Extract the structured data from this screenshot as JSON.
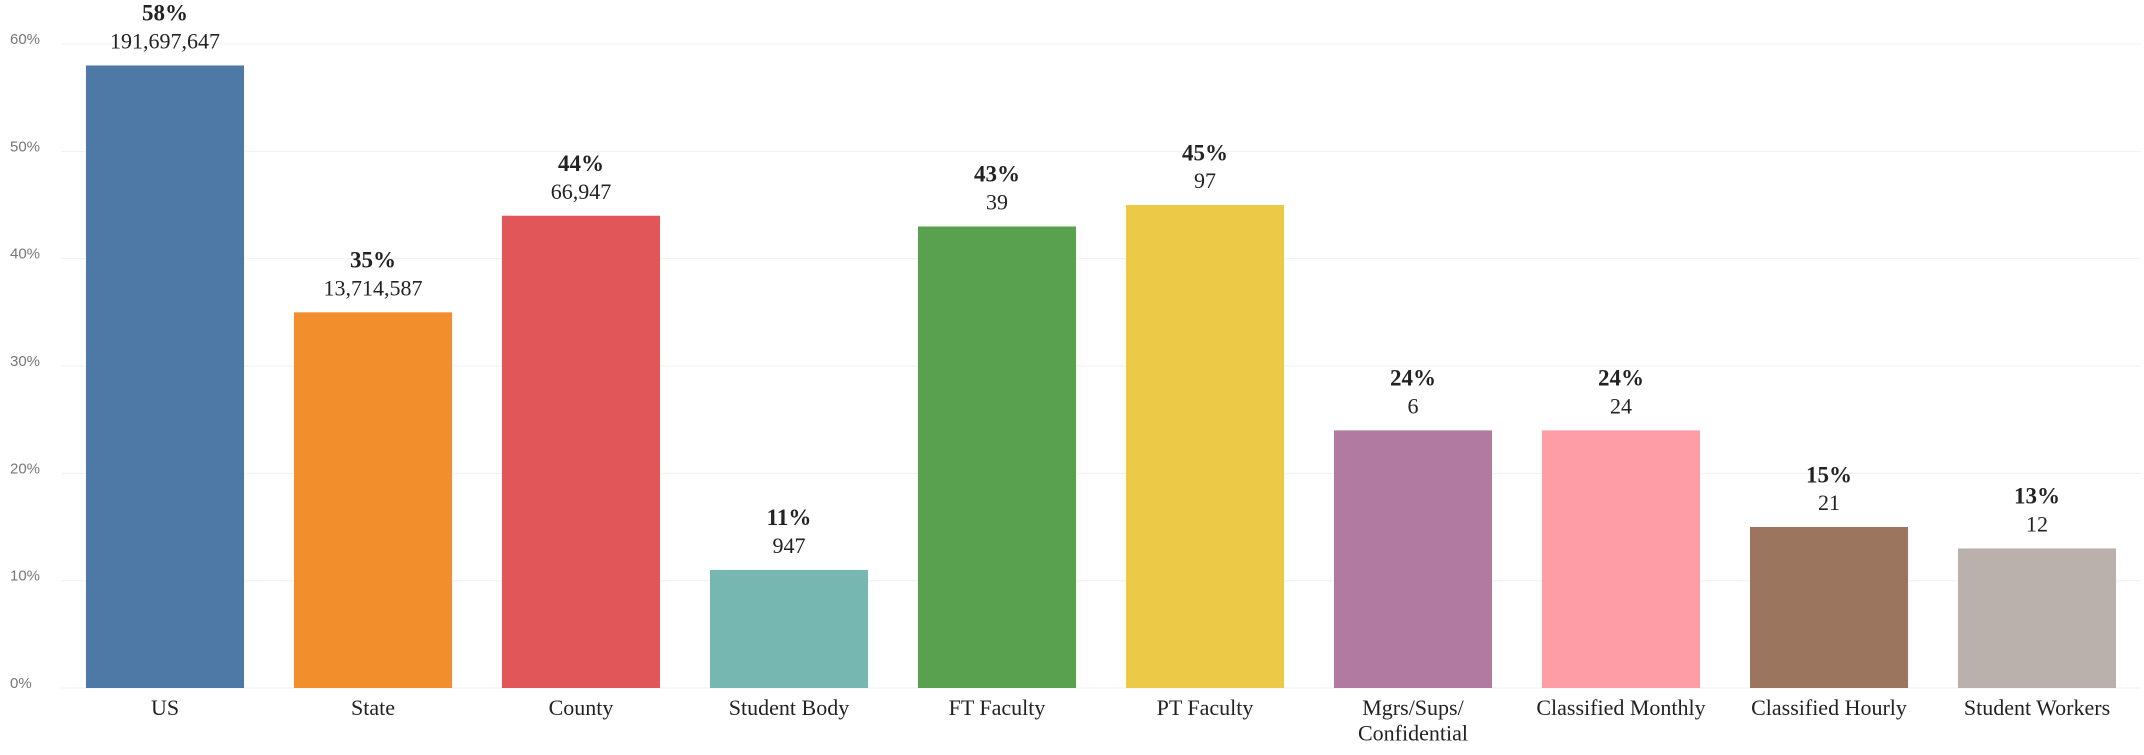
{
  "chart_data": {
    "type": "bar",
    "categories": [
      "US",
      "State",
      "County",
      "Student Body",
      "FT Faculty",
      "PT Faculty",
      "Mgrs/Sups/\nConfidential",
      "Classified Monthly",
      "Classified Hourly",
      "Student Workers"
    ],
    "values": [
      58,
      35,
      44,
      11,
      43,
      45,
      24,
      24,
      15,
      13
    ],
    "value_labels": [
      "58%",
      "35%",
      "44%",
      "11%",
      "43%",
      "45%",
      "24%",
      "24%",
      "15%",
      "13%"
    ],
    "count_labels": [
      "191,697,647",
      "13,714,587",
      "66,947",
      "947",
      "39",
      "97",
      "6",
      "24",
      "21",
      "12"
    ],
    "colors": [
      "#4e79a7",
      "#f28e2b",
      "#e15759",
      "#76b7b2",
      "#59a14f",
      "#edc948",
      "#b07aa1",
      "#ff9da7",
      "#9c755f",
      "#bab0ac"
    ],
    "ylim": [
      0,
      60
    ],
    "yticks": [
      {
        "value": 0,
        "label": "0%"
      },
      {
        "value": 10,
        "label": "10%"
      },
      {
        "value": 20,
        "label": "20%"
      },
      {
        "value": 30,
        "label": "30%"
      },
      {
        "value": 40,
        "label": "40%"
      },
      {
        "value": 50,
        "label": "50%"
      },
      {
        "value": 60,
        "label": "60%"
      }
    ],
    "grid": true
  }
}
